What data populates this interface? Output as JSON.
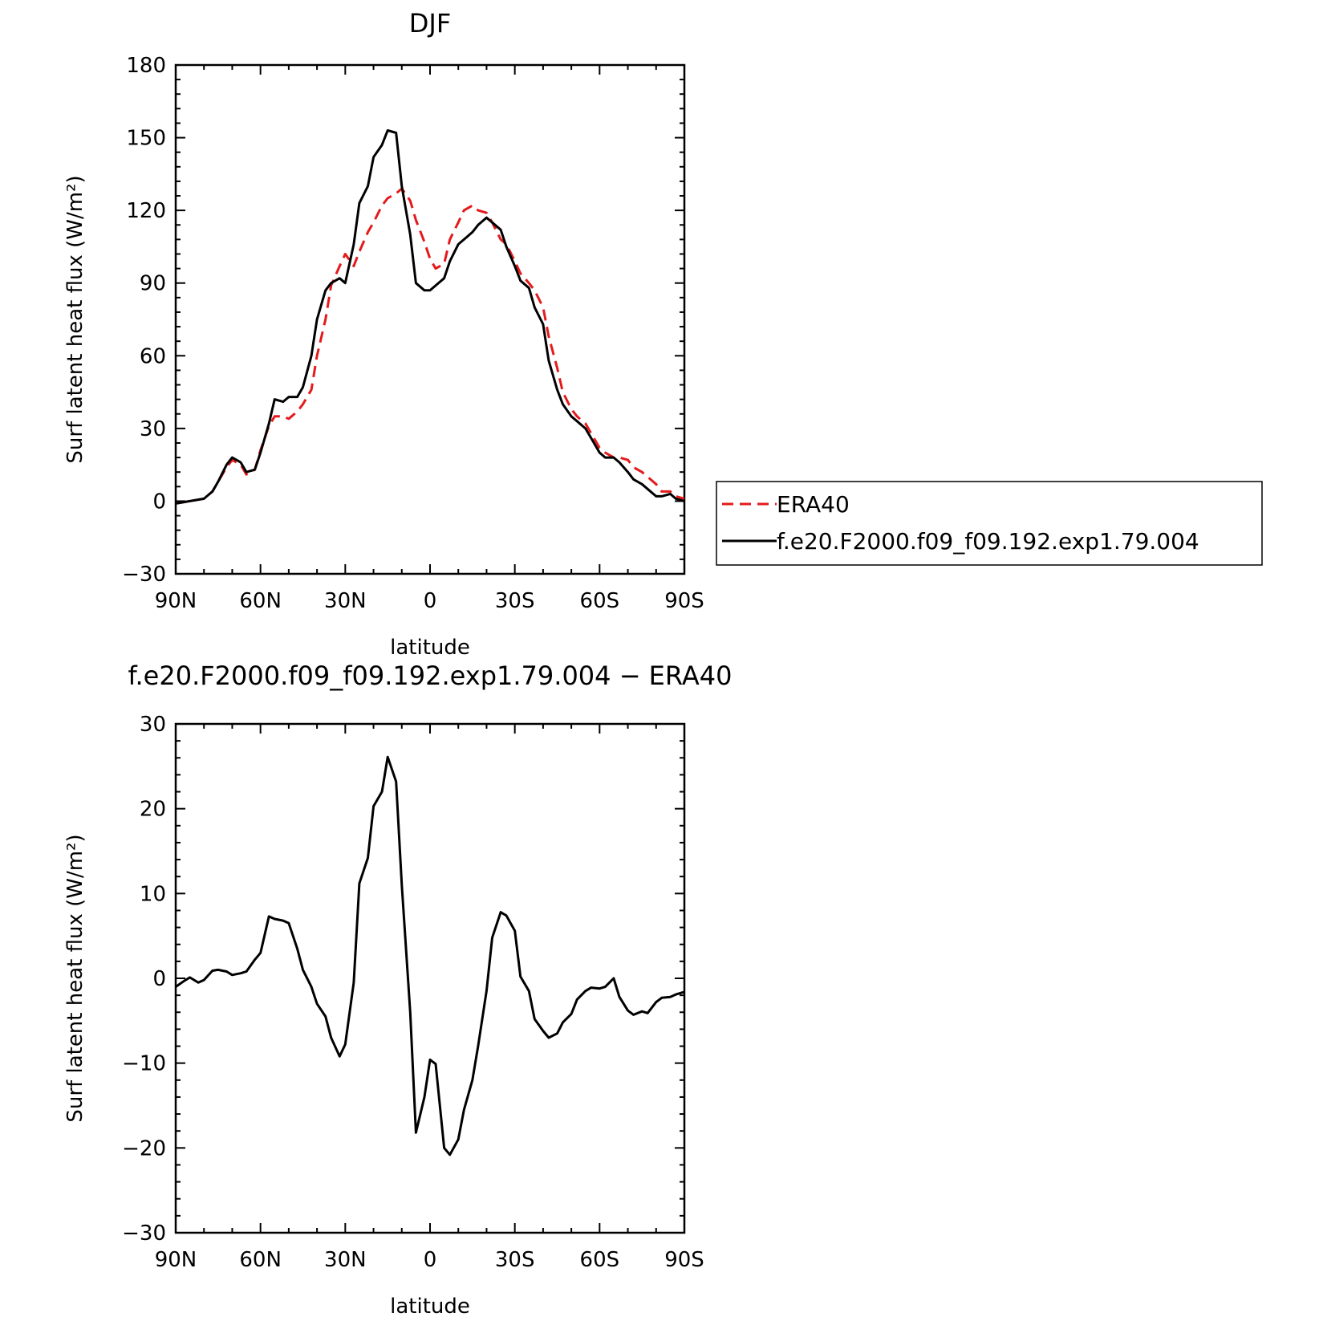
{
  "chart_data": [
    {
      "type": "line",
      "title": "DJF",
      "xlabel": "latitude",
      "ylabel": "Surf latent heat flux (W/m²)",
      "xlim": [
        90,
        -90
      ],
      "ylim": [
        -30,
        180
      ],
      "xticks": [
        90,
        60,
        30,
        0,
        -30,
        -60,
        -90
      ],
      "xtick_labels": [
        "90N",
        "60N",
        "30N",
        "0",
        "30S",
        "60S",
        "90S"
      ],
      "yticks": [
        -30,
        0,
        30,
        60,
        90,
        120,
        150,
        180
      ],
      "ytick_labels": [
        "−30",
        "0",
        "30",
        "60",
        "90",
        "120",
        "150",
        "180"
      ],
      "legend": {
        "position": "right"
      },
      "series": [
        {
          "name": "ERA40",
          "color": "#e41a1c",
          "dash": "dashed",
          "x": [
            90,
            85,
            80,
            77,
            75,
            72,
            70,
            67,
            65,
            62,
            60,
            57,
            55,
            52,
            50,
            47,
            45,
            42,
            40,
            37,
            35,
            32,
            30,
            27,
            25,
            22,
            20,
            17,
            15,
            12,
            10,
            7,
            5,
            2,
            0,
            -2,
            -5,
            -7,
            -10,
            -12,
            -15,
            -17,
            -20,
            -22,
            -25,
            -27,
            -30,
            -32,
            -35,
            -37,
            -40,
            -42,
            -45,
            -47,
            -50,
            -52,
            -55,
            -57,
            -60,
            -62,
            -65,
            -67,
            -70,
            -72,
            -75,
            -77,
            -80,
            -82,
            -85,
            -87,
            -90
          ],
          "y": [
            -1,
            0,
            1,
            4,
            8,
            14,
            17,
            15,
            11,
            13,
            21,
            31,
            35,
            35,
            34,
            37,
            40,
            46,
            60,
            75,
            89,
            97,
            102,
            97,
            103,
            111,
            115,
            122,
            125,
            127,
            129,
            124,
            116,
            107,
            100,
            96,
            98,
            108,
            115,
            120,
            122,
            120,
            119,
            115,
            108,
            106,
            99,
            94,
            90,
            87,
            80,
            68,
            55,
            45,
            38,
            35,
            32,
            28,
            22,
            20,
            18,
            18,
            17,
            14,
            12,
            10,
            7,
            4,
            4,
            2,
            1
          ]
        },
        {
          "name": "f.e20.F2000.f09_f09.192.exp1.79.004",
          "color": "#000000",
          "dash": "solid",
          "x": [
            90,
            85,
            80,
            77,
            75,
            72,
            70,
            67,
            65,
            62,
            60,
            57,
            55,
            52,
            50,
            47,
            45,
            42,
            40,
            37,
            35,
            32,
            30,
            27,
            25,
            22,
            20,
            17,
            15,
            12,
            10,
            7,
            5,
            2,
            0,
            -2,
            -5,
            -7,
            -10,
            -12,
            -15,
            -17,
            -20,
            -22,
            -25,
            -27,
            -30,
            -32,
            -35,
            -37,
            -40,
            -42,
            -45,
            -47,
            -50,
            -52,
            -55,
            -57,
            -60,
            -62,
            -65,
            -67,
            -70,
            -72,
            -75,
            -77,
            -80,
            -82,
            -85,
            -87,
            -90
          ],
          "y": [
            -1,
            0,
            1,
            4,
            8,
            15,
            18,
            16,
            12,
            13,
            20,
            32,
            42,
            41,
            43,
            43,
            47,
            60,
            75,
            87,
            90,
            92,
            90,
            106,
            123,
            130,
            142,
            147,
            153,
            152,
            130,
            110,
            90,
            87,
            87,
            89,
            92,
            99,
            106,
            108,
            111,
            114,
            117,
            115,
            112,
            105,
            97,
            91,
            88,
            80,
            73,
            58,
            46,
            40,
            35,
            33,
            30,
            26,
            20,
            18,
            18,
            16,
            12,
            9,
            7,
            5,
            2,
            2,
            3,
            1,
            0
          ]
        }
      ]
    },
    {
      "type": "line",
      "title": "f.e20.F2000.f09_f09.192.exp1.79.004 − ERA40",
      "xlabel": "latitude",
      "ylabel": "Surf latent heat flux (W/m²)",
      "xlim": [
        90,
        -90
      ],
      "ylim": [
        -30,
        30
      ],
      "xticks": [
        90,
        60,
        30,
        0,
        -30,
        -60,
        -90
      ],
      "xtick_labels": [
        "90N",
        "60N",
        "30N",
        "0",
        "30S",
        "60S",
        "90S"
      ],
      "yticks": [
        -30,
        -20,
        -10,
        0,
        10,
        20,
        30
      ],
      "ytick_labels": [
        "−30",
        "−20",
        "−10",
        "0",
        "10",
        "20",
        "30"
      ],
      "series": [
        {
          "color": "#000000",
          "dash": "solid",
          "x": [
            90,
            87,
            85,
            82,
            80,
            77,
            75,
            72,
            70,
            67,
            65,
            62,
            60,
            57,
            55,
            52,
            50,
            47,
            45,
            42,
            40,
            37,
            35,
            32,
            30,
            27,
            25,
            22,
            20,
            17,
            15,
            12,
            10,
            7,
            5,
            2,
            0,
            -2,
            -5,
            -7,
            -10,
            -12,
            -15,
            -17,
            -20,
            -22,
            -25,
            -27,
            -30,
            -32,
            -35,
            -37,
            -40,
            -42,
            -45,
            -47,
            -50,
            -52,
            -55,
            -57,
            -60,
            -62,
            -65,
            -67,
            -70,
            -72,
            -75,
            -77,
            -80,
            -82,
            -85,
            -87,
            -90
          ],
          "y": [
            -1,
            -0.3,
            0.1,
            -0.5,
            -0.2,
            0.9,
            1.0,
            0.8,
            0.4,
            0.6,
            0.8,
            2.2,
            3.0,
            7.3,
            7.0,
            6.8,
            6.5,
            3.5,
            1.0,
            -1.0,
            -3.0,
            -4.5,
            -7.0,
            -9.2,
            -7.8,
            -0.5,
            11.2,
            14.2,
            20.3,
            22.0,
            26.1,
            23.2,
            11.0,
            -4.0,
            -18.2,
            -14.0,
            -9.6,
            -10.1,
            -20.0,
            -20.8,
            -19.0,
            -15.5,
            -12.0,
            -8.0,
            -1.5,
            4.8,
            7.8,
            7.4,
            5.6,
            0.2,
            -1.5,
            -4.8,
            -6.2,
            -7.0,
            -6.5,
            -5.2,
            -4.2,
            -2.5,
            -1.5,
            -1.1,
            -1.2,
            -1.0,
            0.0,
            -2.2,
            -3.8,
            -4.3,
            -3.9,
            -4.1,
            -2.8,
            -2.3,
            -2.2,
            -1.9,
            -1.6
          ]
        }
      ]
    }
  ]
}
